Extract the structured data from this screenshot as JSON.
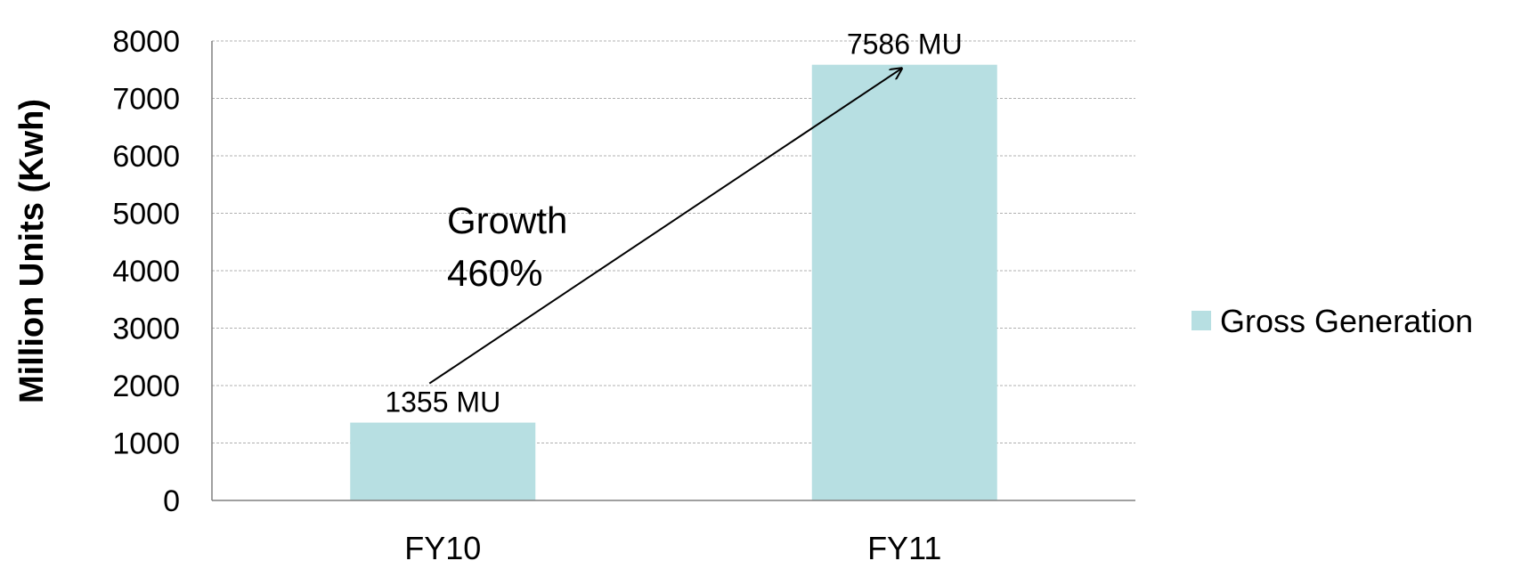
{
  "chart_data": {
    "type": "bar",
    "categories": [
      "FY10",
      "FY11"
    ],
    "series": [
      {
        "name": "Gross Generation",
        "values": [
          1355,
          7586
        ]
      }
    ],
    "data_labels": [
      "1355 MU",
      "7586 MU"
    ],
    "title": "",
    "xlabel": "",
    "ylabel": "Million Units (Kwh)",
    "ylim": [
      0,
      8000
    ],
    "yticks": [
      0,
      1000,
      2000,
      3000,
      4000,
      5000,
      6000,
      7000,
      8000
    ],
    "grid": true,
    "legend_position": "right",
    "annotation": {
      "line1": "Growth",
      "line2": "460%",
      "arrow_from": "FY10",
      "arrow_to": "FY11"
    },
    "colors": {
      "bar": "#b7dfe2",
      "grid": "#b0b0b0",
      "axis": "#808080"
    }
  }
}
